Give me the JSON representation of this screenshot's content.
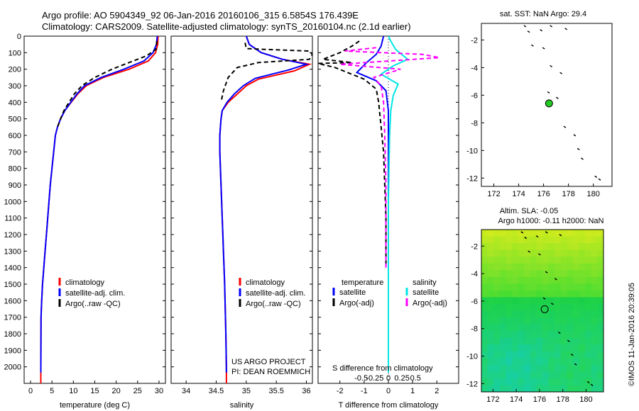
{
  "header": {
    "line1": "Argo profile: AO 5904349_92 06-Jan-2016 20160106_315 6.5854S 176.439E",
    "line2": "Climatology: CARS2009. Satellite-adjusted climatology: synTS_20160104.nc (2.1d earlier)"
  },
  "side_stamp": "©IMOS 11-Jan-2016 20:39:05",
  "colors": {
    "clim": "#ff0000",
    "sat": "#0000ff",
    "argo": "#000000",
    "sat_s": "#00e5e5",
    "argo_s": "#ff00ff",
    "float": "#22cc22"
  },
  "chart_data": [
    {
      "id": "temperature",
      "type": "line",
      "xlabel": "temperature (deg C)",
      "xlim": [
        -1.5,
        31.5
      ],
      "xticks": [
        0,
        5,
        10,
        15,
        20,
        25,
        30
      ],
      "xticklabels": [
        "0",
        "5",
        "10",
        "15",
        "20",
        "25",
        "30"
      ],
      "ylim": [
        2100,
        0
      ],
      "yticks": [
        0,
        100,
        200,
        300,
        400,
        500,
        600,
        700,
        800,
        900,
        1000,
        1100,
        1200,
        1300,
        1400,
        1500,
        1600,
        1700,
        1800,
        1900,
        2000
      ],
      "yticklabels": [
        "0",
        "100",
        "200",
        "300",
        "400",
        "500",
        "600",
        "700",
        "800",
        "900",
        "1000",
        "1100",
        "1200",
        "1300",
        "1400",
        "1500",
        "1600",
        "1700",
        "1800",
        "1900",
        "2000"
      ],
      "legend": [
        "climatology",
        "satellite-adj. clim.",
        "Argo(..raw -QC)"
      ],
      "series": [
        {
          "name": "climatology",
          "color_key": "clim",
          "dash": "",
          "x": [
            29.8,
            29.7,
            29.2,
            27.5,
            23,
            17,
            13,
            11,
            9.5,
            8,
            7,
            6.3,
            5.8,
            5.4,
            5.0,
            4.6,
            4.3,
            4.0,
            3.7,
            3.4,
            3.1,
            2.8,
            2.6,
            2.45,
            2.4,
            2.4
          ],
          "y": [
            0,
            50,
            100,
            150,
            200,
            250,
            300,
            350,
            400,
            450,
            500,
            550,
            600,
            700,
            800,
            900,
            1000,
            1100,
            1200,
            1300,
            1400,
            1500,
            1600,
            1700,
            2000,
            2100
          ]
        },
        {
          "name": "satellite-adj. clim.",
          "color_key": "sat",
          "dash": "",
          "x": [
            29.6,
            29.4,
            28.6,
            26.5,
            21.8,
            16.5,
            12.6,
            10.8,
            9.4,
            8.0,
            7.0,
            6.3,
            5.8,
            5.4,
            5.0,
            4.6,
            4.3,
            4.0,
            3.7,
            3.4,
            3.1,
            2.8,
            2.6,
            2.45,
            2.4
          ],
          "y": [
            0,
            50,
            100,
            150,
            200,
            250,
            300,
            350,
            400,
            450,
            500,
            550,
            600,
            700,
            800,
            900,
            1000,
            1100,
            1200,
            1300,
            1400,
            1500,
            1600,
            1700,
            2035
          ]
        },
        {
          "name": "Argo(..raw -QC)",
          "color_key": "argo",
          "dash": "6,4",
          "x": [
            29.5,
            29.3,
            27,
            23,
            19,
            15,
            12,
            10.2,
            9,
            7.8,
            7.0,
            6.3
          ],
          "y": [
            30,
            80,
            120,
            160,
            200,
            250,
            300,
            350,
            400,
            450,
            500,
            550
          ]
        }
      ],
      "notes": []
    },
    {
      "id": "salinity",
      "type": "line",
      "xlabel": "salinity",
      "xlim": [
        33.75,
        36.1
      ],
      "xticks": [
        34,
        34.5,
        35,
        35.5,
        36
      ],
      "xticklabels": [
        "34",
        "34.5",
        "35",
        "35.5",
        "36"
      ],
      "ylim": [
        2100,
        0
      ],
      "legend": [
        "climatology",
        "satellite-adj. clim.",
        "Argo(..raw -QC)"
      ],
      "series": [
        {
          "name": "climatology",
          "color_key": "clim",
          "dash": "",
          "x": [
            35.0,
            35.05,
            35.25,
            35.6,
            36.05,
            35.8,
            35.2,
            35.0,
            34.85,
            34.7,
            34.6,
            34.58,
            34.56,
            34.56,
            34.58,
            34.6,
            34.62,
            34.64,
            34.66,
            34.67,
            34.67
          ],
          "y": [
            0,
            50,
            100,
            140,
            170,
            210,
            260,
            300,
            350,
            400,
            450,
            500,
            600,
            700,
            900,
            1100,
            1300,
            1500,
            1800,
            2000,
            2100
          ]
        },
        {
          "name": "satellite-adj. clim.",
          "color_key": "sat",
          "dash": "",
          "x": [
            35.0,
            35.05,
            35.25,
            35.6,
            36.0,
            35.7,
            35.15,
            34.95,
            34.8,
            34.68,
            34.6,
            34.58,
            34.56,
            34.56,
            34.58,
            34.6,
            34.62,
            34.64,
            34.66,
            34.67
          ],
          "y": [
            0,
            50,
            100,
            140,
            170,
            205,
            255,
            300,
            350,
            400,
            450,
            500,
            600,
            700,
            900,
            1100,
            1300,
            1500,
            1800,
            2035
          ]
        },
        {
          "name": "Argo(..raw -QC)",
          "color_key": "argo",
          "dash": "6,4",
          "x": [
            34.98,
            35.0,
            35.3,
            36.05,
            36.1,
            36.05,
            35.2,
            34.85,
            34.7,
            34.62,
            34.58
          ],
          "y": [
            40,
            75,
            80,
            90,
            110,
            140,
            160,
            190,
            250,
            330,
            400
          ]
        }
      ],
      "notes": [
        "US ARGO PROJECT",
        "PI: DEAN ROEMMICH"
      ]
    },
    {
      "id": "difference",
      "type": "line",
      "xlabel": "T difference from climatology",
      "xlim": [
        -2.9,
        2.9
      ],
      "xticks": [
        -2,
        -1,
        0,
        1,
        2
      ],
      "xticklabels": [
        "-2",
        "-1",
        "0",
        "1",
        "2"
      ],
      "top_axis_label": "S difference from climatology",
      "top_ticks": [
        -0.5,
        -0.25,
        0,
        0.25,
        0.5
      ],
      "top_ticklabels": [
        "-0.5",
        "-0.25",
        "0",
        "0.25",
        "0.5"
      ],
      "ylim": [
        2100,
        0
      ],
      "legend_headers": [
        "temperature",
        "salinity"
      ],
      "legend": [
        "satellite",
        "Argo(-adj)",
        "satellite",
        "Argo(-adj)"
      ],
      "series": [
        {
          "name": "T satellite",
          "color_key": "sat",
          "dash": "",
          "x": [
            -0.2,
            -0.3,
            -0.5,
            -0.9,
            -1.3,
            -0.5,
            -0.1,
            0,
            0,
            0,
            0,
            0
          ],
          "y": [
            0,
            60,
            110,
            160,
            220,
            270,
            330,
            450,
            700,
            1000,
            1500,
            2035
          ]
        },
        {
          "name": "S satellite",
          "color_key": "sat_s",
          "dash": "",
          "x": [
            0.0,
            0.1,
            0.3,
            0.8,
            0.2,
            -0.3,
            0.4,
            0.2,
            0.1,
            0.05,
            0,
            0,
            0
          ],
          "y": [
            0,
            30,
            80,
            140,
            180,
            230,
            290,
            360,
            450,
            600,
            1000,
            1500,
            2035
          ]
        },
        {
          "name": "T Argo(-adj)",
          "color_key": "argo",
          "dash": "6,4",
          "x": [
            -1.2,
            -1.5,
            -2.0,
            -2.7,
            -1.5,
            -2.9,
            -2.2,
            -1.0,
            -0.5,
            -0.4,
            -0.3,
            -0.2,
            -0.15,
            -0.1,
            -0.1
          ],
          "y": [
            30,
            60,
            100,
            140,
            160,
            165,
            190,
            260,
            320,
            400,
            550,
            700,
            900,
            1100,
            1400
          ]
        },
        {
          "name": "S Argo(-adj)",
          "color_key": "argo_s",
          "dash": "6,4",
          "x": [
            -0.5,
            -1.8,
            1.4,
            2.1,
            -2.0,
            0.5,
            -0.6,
            -0.3,
            -0.2,
            -0.15,
            -0.1,
            -0.1,
            -0.1
          ],
          "y": [
            70,
            90,
            110,
            130,
            170,
            200,
            250,
            300,
            400,
            600,
            900,
            1200,
            1400
          ]
        }
      ],
      "notes": []
    },
    {
      "id": "sst_map",
      "type": "scatter",
      "title": "sat. SST: NaN  Argo: 29.4",
      "xlim": [
        171,
        181.5
      ],
      "ylim": [
        -12.6,
        -0.8
      ],
      "xticks": [
        172,
        174,
        176,
        178,
        180
      ],
      "xticklabels": [
        "172",
        "174",
        "176",
        "178",
        "180"
      ],
      "yticks": [
        -2,
        -4,
        -6,
        -8,
        -10,
        -12
      ],
      "yticklabels": [
        "-2",
        "-4",
        "-6",
        "-8",
        "-10",
        "-12"
      ],
      "float_position": [
        176.44,
        -6.59
      ],
      "track_points": [
        [
          174.5,
          -1.0
        ],
        [
          174.8,
          -1.4
        ],
        [
          175.8,
          -1.3
        ],
        [
          176.6,
          -1.0
        ],
        [
          177.8,
          -1.2
        ],
        [
          175.1,
          -2.4
        ],
        [
          176.0,
          -2.6
        ],
        [
          176.6,
          -3.9
        ],
        [
          177.4,
          -4.4
        ],
        [
          176.4,
          -5.8
        ],
        [
          177.1,
          -6.2
        ],
        [
          177.7,
          -8.3
        ],
        [
          178.5,
          -8.9
        ],
        [
          178.8,
          -9.9
        ],
        [
          179.1,
          -10.6
        ],
        [
          180.2,
          -11.9
        ],
        [
          180.5,
          -12.1
        ]
      ]
    },
    {
      "id": "sla_map",
      "type": "heatmap",
      "title": "Altim. SLA: -0.05",
      "subtitle": "Argo h1000: -0.11  h2000: NaN",
      "xlim": [
        171,
        181.5
      ],
      "ylim": [
        -12.6,
        -0.8
      ],
      "xticks": [
        172,
        174,
        176,
        178,
        180
      ],
      "xticklabels": [
        "172",
        "174",
        "176",
        "178",
        "180"
      ],
      "yticks": [
        -2,
        -4,
        -6,
        -8,
        -10,
        -12
      ],
      "yticklabels": [
        "-2",
        "-4",
        "-6",
        "-8",
        "-10",
        "-12"
      ],
      "float_position": [
        176.44,
        -6.59
      ],
      "track_points": [
        [
          174.5,
          -1.0
        ],
        [
          174.8,
          -1.4
        ],
        [
          175.8,
          -1.3
        ],
        [
          176.6,
          -1.0
        ],
        [
          177.8,
          -1.2
        ],
        [
          175.1,
          -2.4
        ],
        [
          176.0,
          -2.6
        ],
        [
          176.6,
          -3.9
        ],
        [
          177.4,
          -4.4
        ],
        [
          176.4,
          -5.8
        ],
        [
          177.1,
          -6.2
        ],
        [
          177.7,
          -8.3
        ],
        [
          178.5,
          -8.9
        ],
        [
          178.8,
          -9.9
        ],
        [
          179.1,
          -10.6
        ],
        [
          180.2,
          -11.9
        ],
        [
          180.5,
          -12.1
        ]
      ]
    }
  ]
}
